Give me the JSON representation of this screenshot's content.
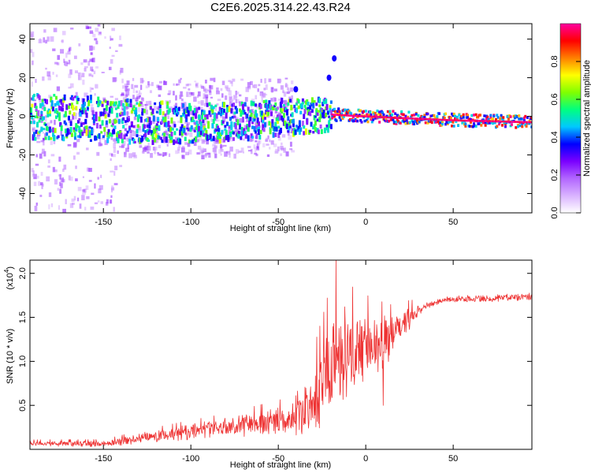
{
  "title": "C2E6.2025.314.22.43.R24",
  "chart_data": [
    {
      "type": "heatmap",
      "name": "spectrogram",
      "xlabel": "Height of straight line (km)",
      "ylabel": "Frequency (Hz)",
      "xlim": [
        -192,
        95
      ],
      "ylim": [
        -50,
        48
      ],
      "xticks": [
        -150,
        -100,
        -50,
        0,
        50
      ],
      "yticks": [
        -40,
        -20,
        0,
        20,
        40
      ],
      "colorbar": {
        "label": "Normalized spectral amplitude",
        "range": [
          0,
          1
        ],
        "ticks": [
          0.0,
          0.2,
          0.4,
          0.6,
          0.8
        ],
        "tick_labels": [
          "0.0",
          "0.2",
          "0.4",
          "0.6",
          "0.8"
        ],
        "colors": [
          "#ffffff",
          "#d9b3ff",
          "#b266ff",
          "#7a00ff",
          "#0000ff",
          "#00c8ff",
          "#00ff80",
          "#80ff00",
          "#ffff00",
          "#ff8000",
          "#ff0000",
          "#ff00a0"
        ]
      },
      "ridge": [
        {
          "x": -190,
          "f": 0
        },
        {
          "x": -150,
          "f": -2
        },
        {
          "x": -100,
          "f": -4
        },
        {
          "x": -50,
          "f": -1
        },
        {
          "x": -20,
          "f": 1
        },
        {
          "x": 0,
          "f": 0
        },
        {
          "x": 50,
          "f": -2
        },
        {
          "x": 95,
          "f": -3
        }
      ],
      "outliers": [
        {
          "x": -18,
          "f": 30
        },
        {
          "x": -40,
          "f": 14
        },
        {
          "x": -21,
          "f": 20
        }
      ]
    },
    {
      "type": "line",
      "name": "snr",
      "xlabel": "Height of straight line (km)",
      "ylabel": "SNR (10 * v/v)",
      "y_multiplier": "(x10",
      "y_multiplier_exp": "4",
      "y_multiplier_close": ")",
      "xlim": [
        -192,
        95
      ],
      "ylim": [
        0,
        2.15
      ],
      "xticks": [
        -150,
        -100,
        -50,
        0,
        50
      ],
      "yticks": [
        0.5,
        1.0,
        1.5,
        2.0
      ],
      "ytick_labels": [
        "0.5",
        "1.0",
        "1.5",
        "2.0"
      ],
      "series_color": "#ee3333",
      "envelope": [
        {
          "x": -192,
          "y": 0.07
        },
        {
          "x": -150,
          "y": 0.06
        },
        {
          "x": -130,
          "y": 0.12
        },
        {
          "x": -100,
          "y": 0.2
        },
        {
          "x": -80,
          "y": 0.25
        },
        {
          "x": -60,
          "y": 0.3
        },
        {
          "x": -40,
          "y": 0.35
        },
        {
          "x": -30,
          "y": 0.55
        },
        {
          "x": -22,
          "y": 0.9
        },
        {
          "x": -15,
          "y": 1.05
        },
        {
          "x": -5,
          "y": 1.15
        },
        {
          "x": 5,
          "y": 1.2
        },
        {
          "x": 15,
          "y": 1.3
        },
        {
          "x": 22,
          "y": 1.45
        },
        {
          "x": 32,
          "y": 1.62
        },
        {
          "x": 45,
          "y": 1.7
        },
        {
          "x": 70,
          "y": 1.72
        },
        {
          "x": 95,
          "y": 1.73
        }
      ],
      "noise": [
        {
          "x": -192,
          "a": 0.03
        },
        {
          "x": -150,
          "a": 0.04
        },
        {
          "x": -120,
          "a": 0.08
        },
        {
          "x": -80,
          "a": 0.12
        },
        {
          "x": -40,
          "a": 0.2
        },
        {
          "x": -30,
          "a": 0.45
        },
        {
          "x": -18,
          "a": 0.7
        },
        {
          "x": 0,
          "a": 0.45
        },
        {
          "x": 20,
          "a": 0.2
        },
        {
          "x": 35,
          "a": 0.04
        },
        {
          "x": 95,
          "a": 0.05
        }
      ],
      "peaks": [
        {
          "x": -17,
          "y": 2.15
        },
        {
          "x": -22,
          "y": 1.72
        },
        {
          "x": -12,
          "y": 1.62
        },
        {
          "x": 10,
          "y": 0.5
        }
      ]
    }
  ]
}
